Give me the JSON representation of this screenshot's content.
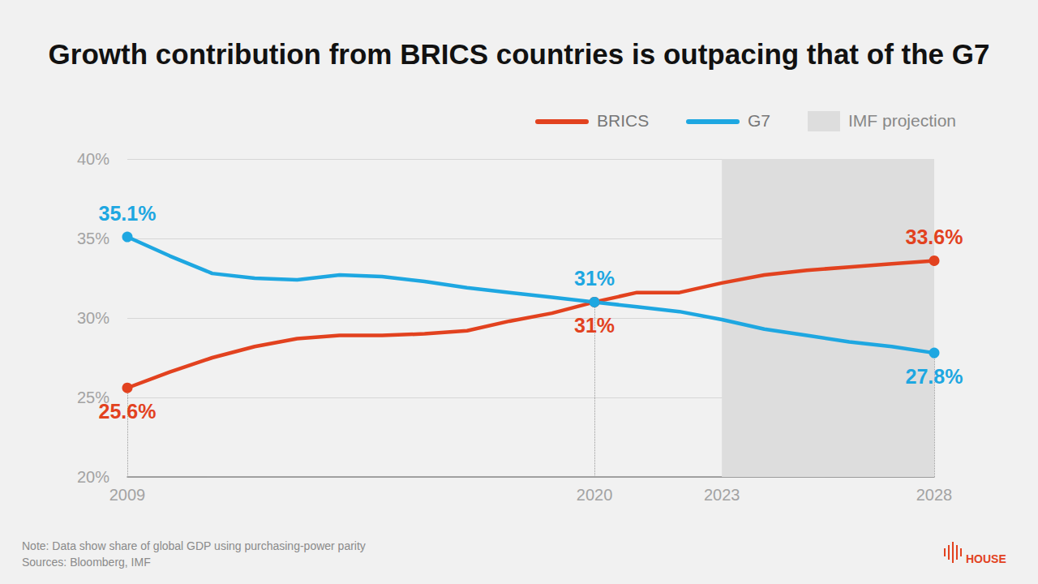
{
  "chart_data": {
    "type": "line",
    "title": "Growth contribution from BRICS countries is outpacing that of the G7",
    "note": "Note: Data show share of global GDP using purchasing-power parity",
    "source": "Sources: Bloomberg, IMF",
    "logo": "HOUSE",
    "x": [
      2009,
      2010,
      2011,
      2012,
      2013,
      2014,
      2015,
      2016,
      2017,
      2018,
      2019,
      2020,
      2021,
      2022,
      2023,
      2024,
      2025,
      2026,
      2027,
      2028
    ],
    "series": [
      {
        "name": "BRICS",
        "color": "#e2421f",
        "values": [
          25.6,
          26.6,
          27.5,
          28.2,
          28.7,
          28.9,
          28.9,
          29.0,
          29.2,
          29.8,
          30.3,
          31.0,
          31.6,
          31.6,
          32.2,
          32.7,
          33.0,
          33.2,
          33.4,
          33.6
        ]
      },
      {
        "name": "G7",
        "color": "#1ea7e1",
        "values": [
          35.1,
          33.9,
          32.8,
          32.5,
          32.4,
          32.7,
          32.6,
          32.3,
          31.9,
          31.6,
          31.3,
          31.0,
          30.7,
          30.4,
          29.9,
          29.3,
          28.9,
          28.5,
          28.2,
          27.8
        ]
      }
    ],
    "projection": {
      "label": "IMF projection",
      "from": 2023,
      "to": 2028,
      "color": "#dddddd"
    },
    "annotations": [
      {
        "series": "G7",
        "x": 2009,
        "y": 35.1,
        "text": "35.1%"
      },
      {
        "series": "BRICS",
        "x": 2009,
        "y": 25.6,
        "text": "25.6%"
      },
      {
        "series": "G7",
        "x": 2020,
        "y": 31.0,
        "text": "31%"
      },
      {
        "series": "BRICS",
        "x": 2020,
        "y": 31.0,
        "text": "31%"
      },
      {
        "series": "BRICS",
        "x": 2028,
        "y": 33.6,
        "text": "33.6%"
      },
      {
        "series": "G7",
        "x": 2028,
        "y": 27.8,
        "text": "27.8%"
      }
    ],
    "xlim": [
      2009,
      2028
    ],
    "xticks": [
      2009,
      2020,
      2023,
      2028
    ],
    "ylim": [
      20,
      40
    ],
    "yticks": [
      {
        "value": 20,
        "label": "20%"
      },
      {
        "value": 25,
        "label": "25%"
      },
      {
        "value": 30,
        "label": "30%"
      },
      {
        "value": 35,
        "label": "35%"
      },
      {
        "value": 40,
        "label": "40%"
      }
    ],
    "grid": true,
    "legend": "top-right",
    "marker": "circle"
  }
}
